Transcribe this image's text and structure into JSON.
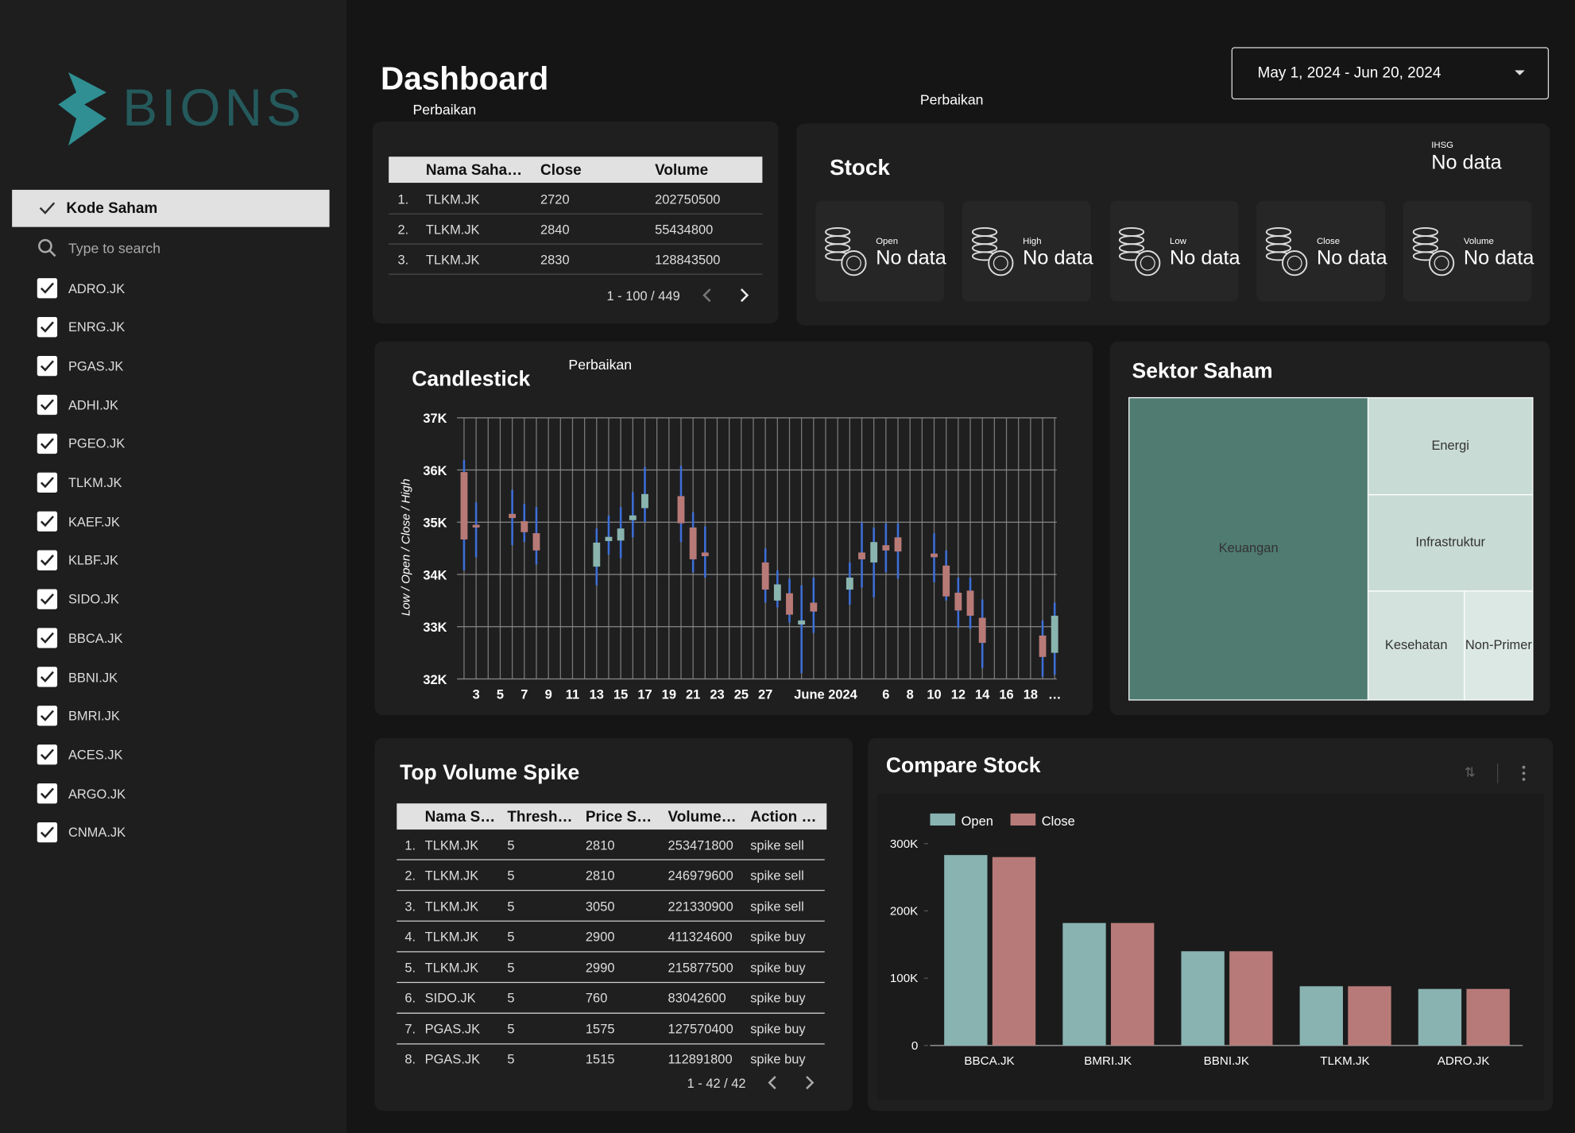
{
  "sidebar": {
    "logo": "BIONS",
    "filter": {
      "title": "Kode Saham",
      "search": "Type to search",
      "items": [
        "ADRO.JK",
        "ENRG.JK",
        "PGAS.JK",
        "ADHI.JK",
        "PGEO.JK",
        "TLKM.JK",
        "KAEF.JK",
        "KLBF.JK",
        "SIDO.JK",
        "BBCA.JK",
        "BBNI.JK",
        "BMRI.JK",
        "ACES.JK",
        "ARGO.JK",
        "CNMA.JK"
      ]
    }
  },
  "header": {
    "title": "Dashboard",
    "note": "Perbaikan",
    "date_range": "May 1, 2024 - Jun 20, 2024"
  },
  "latest_table": {
    "columns": [
      "Nama Saha…",
      "Close",
      "Volume"
    ],
    "rows": [
      [
        "1.",
        "TLKM.JK",
        2720,
        202750500
      ],
      [
        "2.",
        "TLKM.JK",
        2840,
        55434800
      ],
      [
        "3.",
        "TLKM.JK",
        2830,
        128843500
      ]
    ],
    "pagination": "1 - 100 / 449"
  },
  "stock": {
    "note": "Perbaikan",
    "title": "Stock",
    "ihsg": {
      "label": "IHSG",
      "value": "No data"
    },
    "cards": [
      {
        "label": "Open",
        "value": "No data"
      },
      {
        "label": "High",
        "value": "No data"
      },
      {
        "label": "Low",
        "value": "No data"
      },
      {
        "label": "Close",
        "value": "No data"
      },
      {
        "label": "Volume",
        "value": "No data"
      }
    ]
  },
  "spike_table": {
    "title": "Top Volume Spike",
    "columns": [
      "Nama S…",
      "Thresh…",
      "Price S…",
      "Volume…",
      "Action …"
    ],
    "rows": [
      [
        "1.",
        "TLKM.JK",
        5,
        2810,
        253471800,
        "spike sell"
      ],
      [
        "2.",
        "TLKM.JK",
        5,
        2810,
        246979600,
        "spike sell"
      ],
      [
        "3.",
        "TLKM.JK",
        5,
        3050,
        221330900,
        "spike sell"
      ],
      [
        "4.",
        "TLKM.JK",
        5,
        2900,
        411324600,
        "spike buy"
      ],
      [
        "5.",
        "TLKM.JK",
        5,
        2990,
        215877500,
        "spike buy"
      ],
      [
        "6.",
        "SIDO.JK",
        5,
        760,
        83042600,
        "spike buy"
      ],
      [
        "7.",
        "PGAS.JK",
        5,
        1575,
        127570400,
        "spike buy"
      ],
      [
        "8.",
        "PGAS.JK",
        5,
        1515,
        112891800,
        "spike buy"
      ]
    ],
    "pagination": "1 - 42 / 42"
  },
  "chart_data": [
    {
      "type": "candlestick",
      "title": "Candlestick",
      "note": "Perbaikan",
      "y_label": "Low / Open / Close / High",
      "categories": [
        null,
        "3",
        null,
        "5",
        null,
        "7",
        null,
        "9",
        null,
        "11",
        null,
        "13",
        null,
        "15",
        null,
        "17",
        null,
        "19",
        null,
        "21",
        null,
        "23",
        null,
        "25",
        null,
        "27",
        null,
        null,
        null,
        null,
        "June 2024",
        null,
        null,
        null,
        null,
        "6",
        null,
        "8",
        null,
        "10",
        null,
        "12",
        null,
        "14",
        null,
        "16",
        null,
        "18",
        null,
        "…"
      ],
      "candles": [
        {
          "open": 35960,
          "high": 36190,
          "low": 34080,
          "close": 34670
        },
        {
          "open": 34950,
          "high": 35380,
          "low": 34330,
          "close": 34900
        },
        null,
        null,
        {
          "open": 35160,
          "high": 35620,
          "low": 34560,
          "close": 35080
        },
        {
          "open": 35020,
          "high": 35350,
          "low": 34620,
          "close": 34810
        },
        {
          "open": 34790,
          "high": 35290,
          "low": 34190,
          "close": 34460
        },
        null,
        null,
        null,
        null,
        {
          "open": 34150,
          "high": 34880,
          "low": 33790,
          "close": 34610
        },
        {
          "open": 34640,
          "high": 35130,
          "low": 34380,
          "close": 34720
        },
        {
          "open": 34650,
          "high": 35290,
          "low": 34310,
          "close": 34880
        },
        {
          "open": 35040,
          "high": 35580,
          "low": 34710,
          "close": 35130
        },
        {
          "open": 35270,
          "high": 36060,
          "low": 35000,
          "close": 35540
        },
        null,
        null,
        {
          "open": 35500,
          "high": 36080,
          "low": 34620,
          "close": 34980
        },
        {
          "open": 34900,
          "high": 35190,
          "low": 34040,
          "close": 34290
        },
        {
          "open": 34420,
          "high": 34920,
          "low": 33940,
          "close": 34350
        },
        null,
        null,
        null,
        null,
        {
          "open": 34230,
          "high": 34500,
          "low": 33460,
          "close": 33710
        },
        {
          "open": 33500,
          "high": 34080,
          "low": 33370,
          "close": 33810
        },
        {
          "open": 33640,
          "high": 33920,
          "low": 33080,
          "close": 33230
        },
        {
          "open": 33040,
          "high": 33790,
          "low": 32110,
          "close": 33120
        },
        {
          "open": 33460,
          "high": 33940,
          "low": 32880,
          "close": 33290
        },
        null,
        null,
        {
          "open": 33710,
          "high": 34230,
          "low": 33420,
          "close": 33940
        },
        {
          "open": 34420,
          "high": 35000,
          "low": 33750,
          "close": 34290
        },
        {
          "open": 34230,
          "high": 34900,
          "low": 33560,
          "close": 34620
        },
        {
          "open": 34560,
          "high": 34980,
          "low": 34040,
          "close": 34460
        },
        {
          "open": 34710,
          "high": 34980,
          "low": 33920,
          "close": 34440
        },
        null,
        null,
        {
          "open": 34400,
          "high": 34790,
          "low": 33850,
          "close": 34330
        },
        {
          "open": 34170,
          "high": 34460,
          "low": 33500,
          "close": 33580
        },
        {
          "open": 33650,
          "high": 33940,
          "low": 32980,
          "close": 33310
        },
        {
          "open": 33690,
          "high": 33940,
          "low": 32960,
          "close": 33210
        },
        {
          "open": 33170,
          "high": 33520,
          "low": 32210,
          "close": 32690
        },
        null,
        null,
        null,
        null,
        {
          "open": 32830,
          "high": 33120,
          "low": 32040,
          "close": 32420
        },
        {
          "open": 32500,
          "high": 33460,
          "low": 32080,
          "close": 33210
        }
      ],
      "ylim": [
        32000,
        37000
      ],
      "yticks": [
        {
          "value": 32000,
          "label": "32K"
        },
        {
          "value": 33000,
          "label": "33K"
        },
        {
          "value": 34000,
          "label": "34K"
        },
        {
          "value": 35000,
          "label": "35K"
        },
        {
          "value": 36000,
          "label": "36K"
        },
        {
          "value": 37000,
          "label": "37K"
        }
      ],
      "grid": true,
      "up_color": "#8ab4ae",
      "down_color": "#b87a77",
      "wick_color": "#3d6fd8"
    },
    {
      "type": "treemap",
      "title": "Sektor Saham",
      "categories": [
        "Keuangan",
        "Energi",
        "Infrastruktur",
        "Kesehatan",
        "Non-Primer"
      ],
      "values": [
        59.2,
        13.1,
        13.0,
        8.6,
        6.1
      ],
      "colors": [
        "#4f7b70",
        "#c9dbd5",
        "#c9dbd5",
        "#d3e2dd",
        "#dce8e4"
      ]
    },
    {
      "type": "bar",
      "title": "Compare Stock",
      "categories": [
        "BBCA.JK",
        "BMRI.JK",
        "BBNI.JK",
        "TLKM.JK",
        "ADRO.JK"
      ],
      "series": [
        {
          "name": "Open",
          "color": "#88b3b1",
          "values": [
            283000,
            182000,
            140000,
            88000,
            84000
          ]
        },
        {
          "name": "Close",
          "color": "#b87a78",
          "values": [
            280000,
            182000,
            140000,
            88000,
            84000
          ]
        }
      ],
      "ylim": [
        0,
        300000
      ],
      "yticks": [
        0,
        {
          "value": 100000,
          "label": "100K"
        },
        {
          "value": 200000,
          "label": "200K"
        },
        {
          "value": 300000,
          "label": "300K"
        }
      ],
      "legend": "top-left"
    }
  ]
}
